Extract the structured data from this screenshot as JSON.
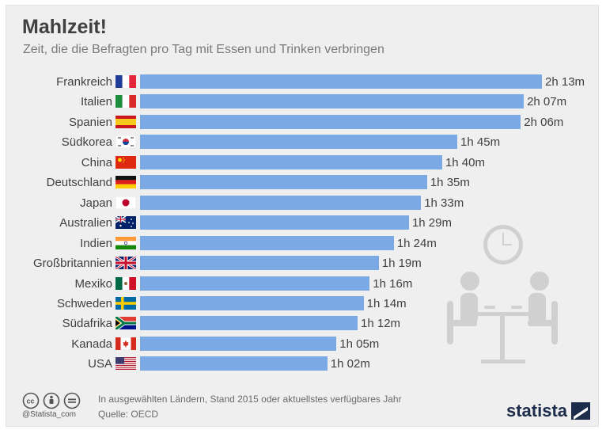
{
  "title": "Mahlzeit!",
  "subtitle": "Zeit, die die Befragten pro Tag mit Essen und Trinken verbringen",
  "footer": {
    "note": "In ausgewählten Ländern, Stand 2015 oder aktuellstes verfügbares Jahr",
    "source": "Quelle: OECD",
    "credit": "@Statista_com",
    "brand": "statista"
  },
  "colors": {
    "bar": "#7ba9e3",
    "background": "#efefef",
    "text": "#404040"
  },
  "chart_data": {
    "type": "bar",
    "orientation": "horizontal",
    "title": "Mahlzeit!",
    "subtitle": "Zeit, die die Befragten pro Tag mit Essen und Trinken verbringen",
    "unit": "minutes",
    "categories": [
      "Frankreich",
      "Italien",
      "Spanien",
      "Südkorea",
      "China",
      "Deutschland",
      "Japan",
      "Australien",
      "Indien",
      "Großbritannien",
      "Mexiko",
      "Schweden",
      "Südafrika",
      "Kanada",
      "USA"
    ],
    "values": [
      133,
      127,
      126,
      105,
      100,
      95,
      93,
      89,
      84,
      79,
      76,
      74,
      72,
      65,
      62
    ],
    "labels": [
      "2h 13m",
      "2h 07m",
      "2h 06m",
      "1h 45m",
      "1h 40m",
      "1h 35m",
      "1h 33m",
      "1h 29m",
      "1h 24m",
      "1h 19m",
      "1h 16m",
      "1h 14m",
      "1h 12m",
      "1h 05m",
      "1h 02m"
    ],
    "flags": [
      "fr-flag-icon",
      "it-flag-icon",
      "es-flag-icon",
      "kr-flag-icon",
      "cn-flag-icon",
      "de-flag-icon",
      "jp-flag-icon",
      "au-flag-icon",
      "in-flag-icon",
      "gb-flag-icon",
      "mx-flag-icon",
      "se-flag-icon",
      "za-flag-icon",
      "ca-flag-icon",
      "us-flag-icon"
    ],
    "xlim": [
      0,
      133
    ]
  }
}
